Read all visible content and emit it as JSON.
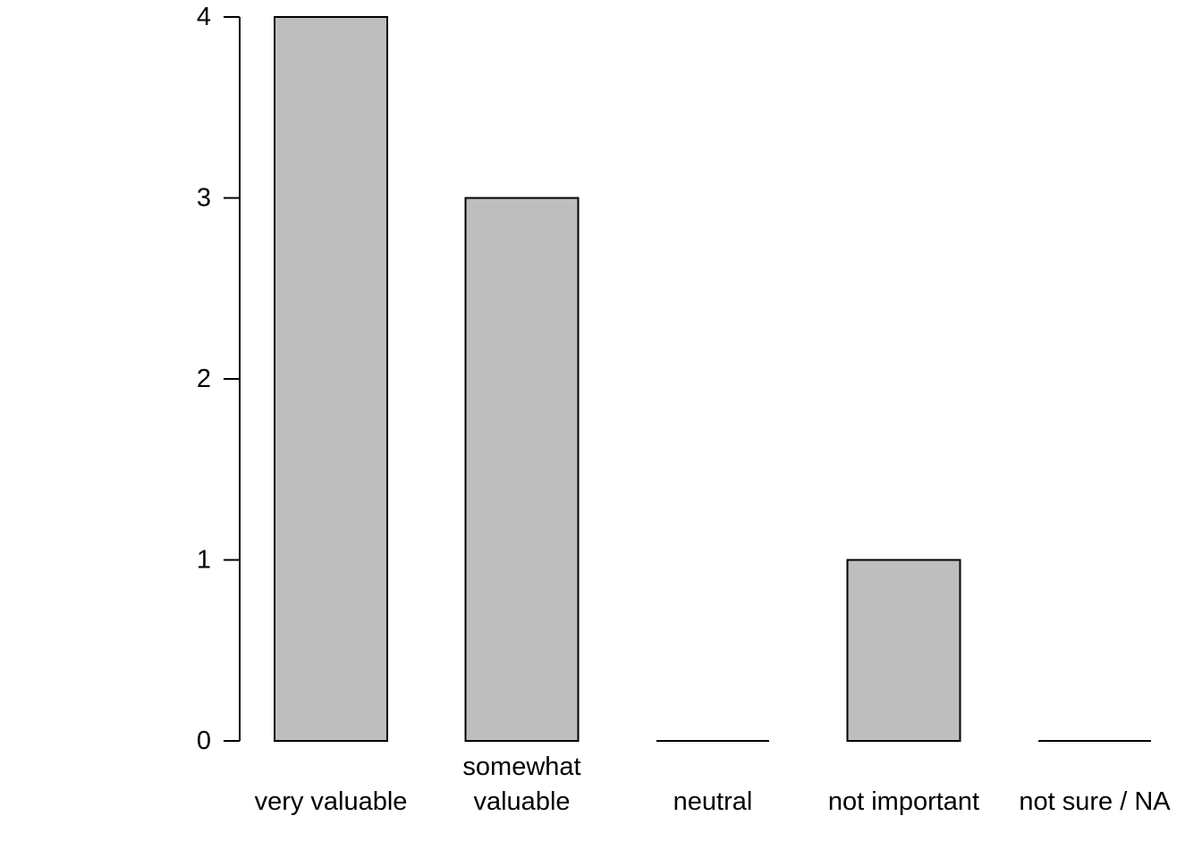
{
  "chart_data": {
    "type": "bar",
    "title": "",
    "xlabel": "",
    "ylabel": "",
    "categories": [
      [
        "very valuable"
      ],
      [
        "somewhat",
        "valuable"
      ],
      [
        "neutral"
      ],
      [
        "not important"
      ],
      [
        "not sure / NA"
      ]
    ],
    "values": [
      4,
      3,
      0,
      1,
      0
    ],
    "ylim": [
      0,
      4
    ],
    "yticks": [
      0,
      1,
      2,
      3,
      4
    ],
    "grid": false,
    "legend": "none",
    "colors": {
      "bar_fill": "#bebebe",
      "bar_stroke": "#000000",
      "axis": "#000000",
      "background": "#ffffff"
    }
  }
}
